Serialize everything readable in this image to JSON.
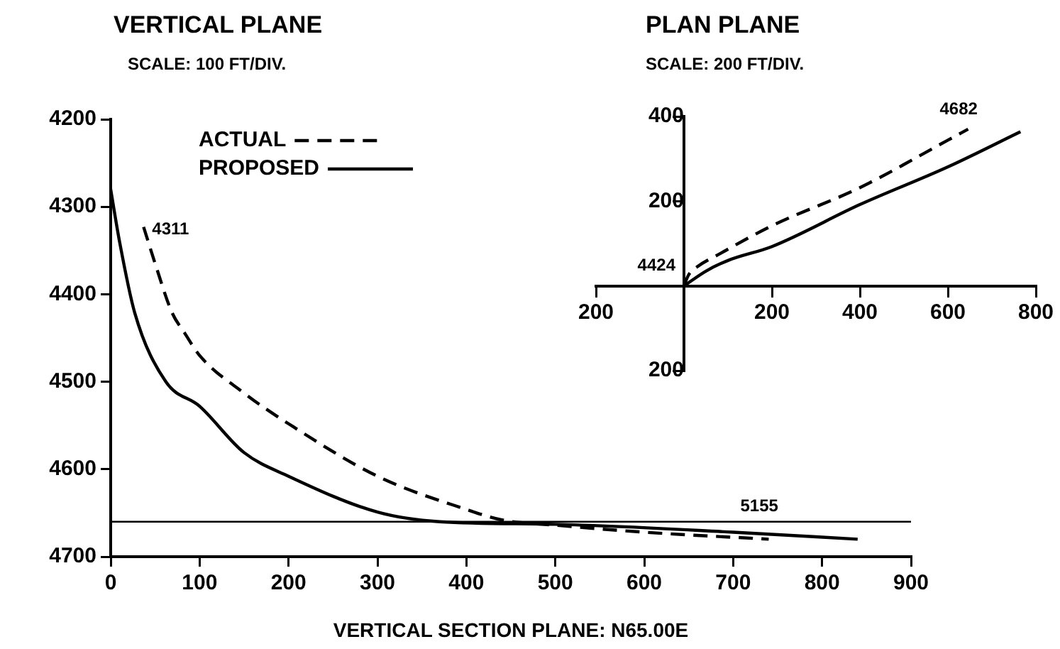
{
  "chart_data": [
    {
      "type": "line",
      "title": "VERTICAL PLANE",
      "subtitle": "SCALE: 100 FT/DIV.",
      "xlabel": "VERTICAL SECTION PLANE: N65.00E",
      "xlim": [
        0,
        900
      ],
      "xticks": [
        0,
        100,
        200,
        300,
        400,
        500,
        600,
        700,
        800,
        900
      ],
      "ylim": [
        4700,
        4200
      ],
      "yticks": [
        4200,
        4300,
        4400,
        4500,
        4600,
        4700
      ],
      "grid": false,
      "legend": "top left",
      "marker": "none",
      "series": [
        {
          "name": "ACTUAL",
          "color": "#000000",
          "line_style": "dashed",
          "x": [
            37,
            50,
            69,
            83,
            100,
            150,
            200,
            300,
            400,
            440,
            500,
            600,
            740
          ],
          "values": [
            4323,
            4365,
            4421,
            4444,
            4470,
            4513,
            4548,
            4608,
            4646,
            4658,
            4664,
            4672,
            4680
          ]
        },
        {
          "name": "PROPOSED",
          "color": "#000000",
          "line_style": "solid",
          "x": [
            0,
            10,
            27,
            62,
            100,
            150,
            200,
            300,
            370,
            500,
            700,
            840
          ],
          "values": [
            4280,
            4340,
            4421,
            4500,
            4528,
            4581,
            4608,
            4649,
            4660,
            4663,
            4672,
            4680
          ]
        }
      ],
      "ref_lines": [
        {
          "axis": "y",
          "value": 4660,
          "color": "#000000"
        }
      ],
      "annotations": [
        {
          "text": "4311",
          "x": 37,
          "y": 4323
        },
        {
          "text": "5155",
          "x": 740,
          "y": 4665
        }
      ]
    },
    {
      "type": "line",
      "title": "PLAN PLANE",
      "subtitle": "SCALE: 200 FT/DIV.",
      "xlim": [
        -200,
        800
      ],
      "xticks": [
        {
          "value": -200,
          "label": "200"
        },
        200,
        400,
        600,
        800
      ],
      "ylim": [
        -200,
        400
      ],
      "yticks": [
        {
          "value": -200,
          "label": "200"
        },
        200,
        400
      ],
      "grid": false,
      "marker": "none",
      "series": [
        {
          "color": "#000000",
          "line_style": "dashed",
          "x": [
            0,
            10,
            30,
            80,
            200,
            400,
            600,
            646
          ],
          "values": [
            0,
            25,
            45,
            75,
            142,
            232,
            344,
            370
          ]
        },
        {
          "color": "#000000",
          "line_style": "solid",
          "x": [
            0,
            50,
            100,
            200,
            400,
            600,
            765
          ],
          "values": [
            0,
            35,
            60,
            93,
            192,
            281,
            364
          ]
        }
      ],
      "annotations": [
        {
          "text": "4424",
          "x": 0,
          "y": 0
        },
        {
          "text": "4682",
          "x": 646,
          "y": 370
        }
      ]
    }
  ]
}
